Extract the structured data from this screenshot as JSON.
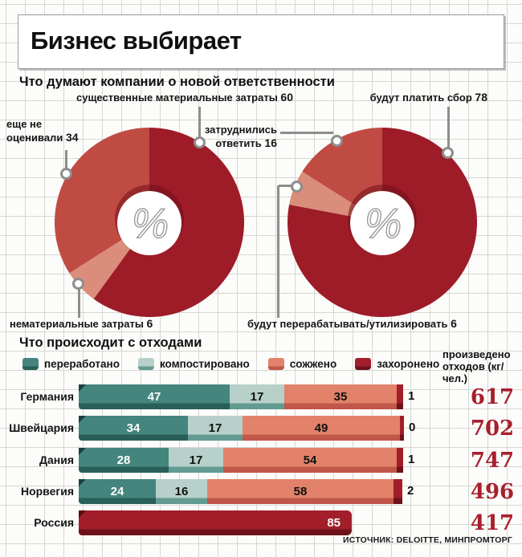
{
  "title": "Бизнес выбирает",
  "source": "ИСТОЧНИК: DELOITTE, МИНПРОМТОРГ",
  "colors": {
    "dark_red": "#9d1c28",
    "medium_red": "#c04b43",
    "pale_salmon": "#d98d7a",
    "teal": "#44857d",
    "light_teal": "#b7d0ca",
    "salmon": "#e2826a",
    "bar_dark_red": "#a11e2a",
    "produced_number": "#a81f2e",
    "leader_gray": "#8d8d8b"
  },
  "chart_data": [
    {
      "type": "pie",
      "title": "Что думают компании о новой ответственности",
      "unit": "%",
      "segments": [
        {
          "label": "существенные материальные затраты",
          "value": 60
        },
        {
          "label": "нематериальные затраты",
          "value": 6
        },
        {
          "label": "еще не оценивали",
          "value": 34
        }
      ],
      "colors": [
        "#9d1c28",
        "#d98d7a",
        "#c04b43"
      ]
    },
    {
      "type": "pie",
      "unit": "%",
      "segments": [
        {
          "label": "будут платить сбор",
          "value": 78
        },
        {
          "label": "будут перерабатывать/утилизировать",
          "value": 6
        },
        {
          "label": "затруднились ответить",
          "value": 16
        }
      ],
      "colors": [
        "#9d1c28",
        "#d98d7a",
        "#c04b43"
      ]
    },
    {
      "type": "bar",
      "title": "Что происходит с отходами",
      "orientation": "horizontal-stacked",
      "xmax": 100,
      "categories": [
        "переработано",
        "компостировано",
        "сожжено",
        "захоронено"
      ],
      "colors": [
        "#44857d",
        "#b7d0ca",
        "#e2826a",
        "#a11e2a"
      ],
      "produced_label": "произведено отходов (кг/чел.)",
      "rows": [
        {
          "country": "Германия",
          "values": [
            47,
            17,
            35,
            1
          ],
          "produced": 617
        },
        {
          "country": "Швейцария",
          "values": [
            34,
            17,
            49,
            0
          ],
          "produced": 702
        },
        {
          "country": "Дания",
          "values": [
            28,
            17,
            54,
            1
          ],
          "produced": 747
        },
        {
          "country": "Норвегия",
          "values": [
            24,
            16,
            58,
            2
          ],
          "produced": 496
        },
        {
          "country": "Россия",
          "values": [
            0,
            0,
            0,
            85
          ],
          "produced": 417
        }
      ]
    }
  ]
}
